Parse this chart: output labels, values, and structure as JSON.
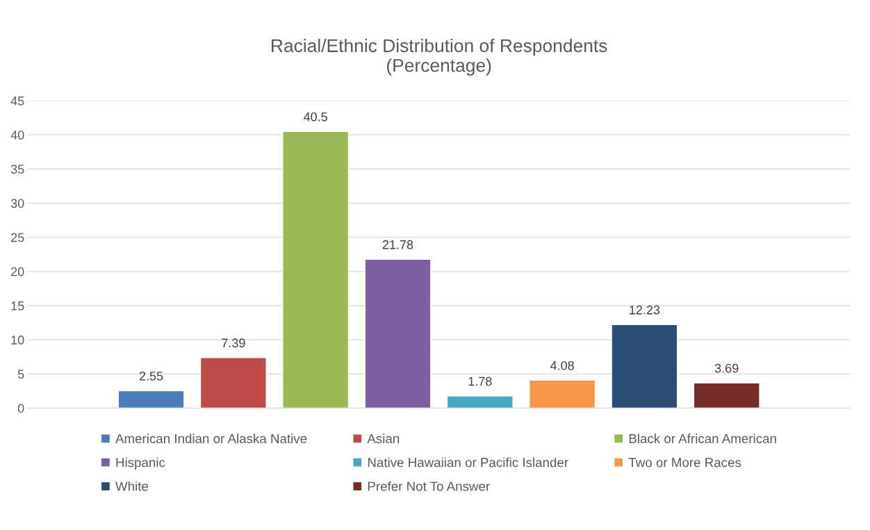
{
  "chart_data": {
    "type": "bar",
    "title": "Racial/Ethnic Distribution of Respondents\n(Percentage)",
    "categories": [
      null
    ],
    "series": [
      {
        "name": "American Indian or Alaska Native",
        "color": "#4a7ebb",
        "values": [
          2.55
        ]
      },
      {
        "name": "Asian",
        "color": "#be4b48",
        "values": [
          7.39
        ]
      },
      {
        "name": "Black or African American",
        "color": "#98b954",
        "values": [
          40.5
        ]
      },
      {
        "name": "Hispanic",
        "color": "#7d60a0",
        "values": [
          21.78
        ]
      },
      {
        "name": "Native Hawaiian or Pacific Islander",
        "color": "#46aac5",
        "values": [
          1.78
        ]
      },
      {
        "name": "Two or More Races",
        "color": "#f79646",
        "values": [
          4.08
        ]
      },
      {
        "name": "White",
        "color": "#2c4d75",
        "values": [
          12.23
        ]
      },
      {
        "name": "Prefer Not To Answer",
        "color": "#772c2a",
        "values": [
          3.69
        ]
      }
    ],
    "ylim": [
      0,
      45
    ],
    "yticks": [
      0,
      5,
      10,
      15,
      20,
      25,
      30,
      35,
      40,
      45
    ],
    "grid": "y",
    "legend": "bottom",
    "data_labels": true
  }
}
